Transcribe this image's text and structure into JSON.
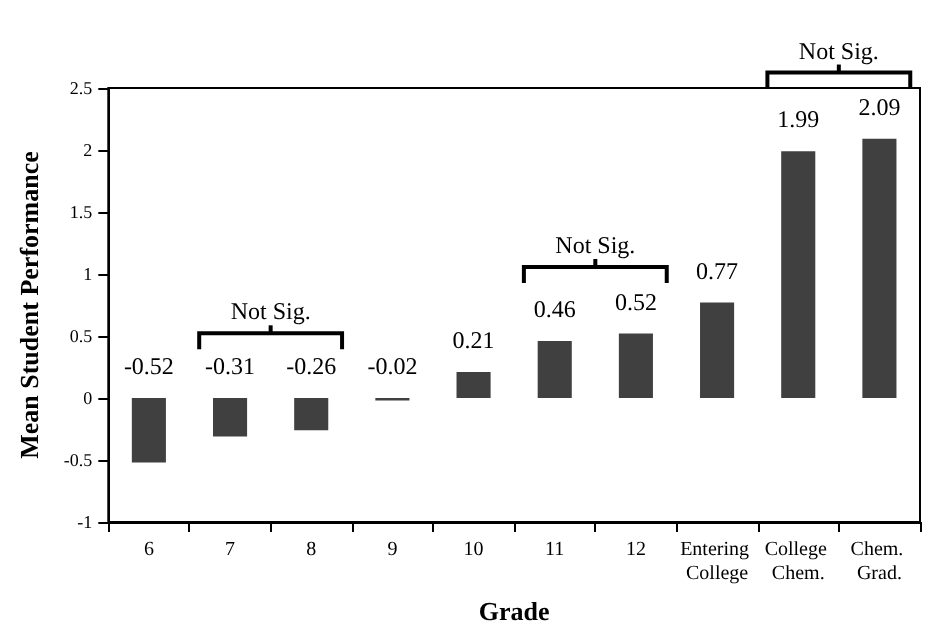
{
  "chart_data": {
    "type": "bar",
    "xlabel": "Grade",
    "ylabel": "Mean Student Performance",
    "categories": [
      "6",
      "7",
      "8",
      "9",
      "10",
      "11",
      "12",
      "Entering College",
      "College Chem.",
      "Chem. Grad."
    ],
    "values": [
      -0.52,
      -0.31,
      -0.26,
      -0.02,
      0.21,
      0.46,
      0.52,
      0.77,
      1.99,
      2.09
    ],
    "color": "#404040",
    "ylim": [
      -1,
      2.5
    ],
    "yticks": [
      -1,
      -0.5,
      0,
      0.5,
      1,
      1.5,
      2,
      2.5
    ],
    "grid": false,
    "data_labels": true,
    "annotations": [
      "Not Sig.",
      "Not Sig.",
      "Not Sig."
    ]
  }
}
